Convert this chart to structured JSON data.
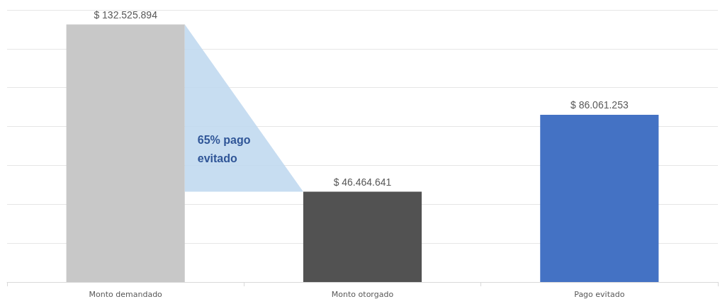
{
  "chart_data": {
    "type": "bar",
    "categories": [
      "Monto demandado",
      "Monto otorgado",
      "Pago evitado"
    ],
    "values": [
      132525894,
      46464641,
      86061253
    ],
    "colors": [
      "#c8c8c8",
      "#525252",
      "#4472c4"
    ],
    "value_labels": [
      "$ 132.525.894",
      "$ 46.464.641",
      "$ 86.061.253"
    ],
    "ylim": [
      0,
      140000000
    ],
    "yticks": [
      {
        "value": 0,
        "label": null
      },
      {
        "value": 20000000,
        "label": null
      },
      {
        "value": 40000000,
        "label": null
      },
      {
        "value": 60000000,
        "label": null
      },
      {
        "value": 80000000,
        "label": null
      },
      {
        "value": 100000000,
        "label": null
      },
      {
        "value": 120000000,
        "label": null
      },
      {
        "value": 140000000,
        "label": null
      }
    ],
    "tick_labels": "x",
    "grid": "y",
    "annotations": [
      "65% pago evitado"
    ]
  }
}
